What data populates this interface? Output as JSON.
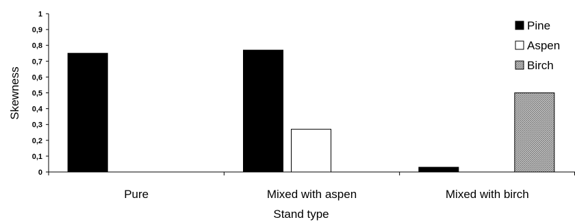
{
  "chart_data": {
    "type": "bar",
    "title": "",
    "xlabel": "Stand type",
    "ylabel": "Skewness",
    "categories": [
      "Pure",
      "Mixed with aspen",
      "Mixed with birch"
    ],
    "series": [
      {
        "name": "Pine",
        "values": [
          0.75,
          0.77,
          0.03
        ],
        "color": "#000000",
        "pattern": "solid"
      },
      {
        "name": "Aspen",
        "values": [
          0,
          0.27,
          0
        ],
        "color": "#ffffff",
        "pattern": "solid"
      },
      {
        "name": "Birch",
        "values": [
          0,
          0,
          0.5
        ],
        "color": "#b0b0b0",
        "pattern": "hatched"
      }
    ],
    "ylim": [
      0,
      1
    ],
    "yticks": [
      "0",
      "0,1",
      "0,2",
      "0,3",
      "0,4",
      "0,5",
      "0,6",
      "0,7",
      "0,8",
      "0,9",
      "1"
    ],
    "grid": false,
    "legend_position": "top-right"
  }
}
